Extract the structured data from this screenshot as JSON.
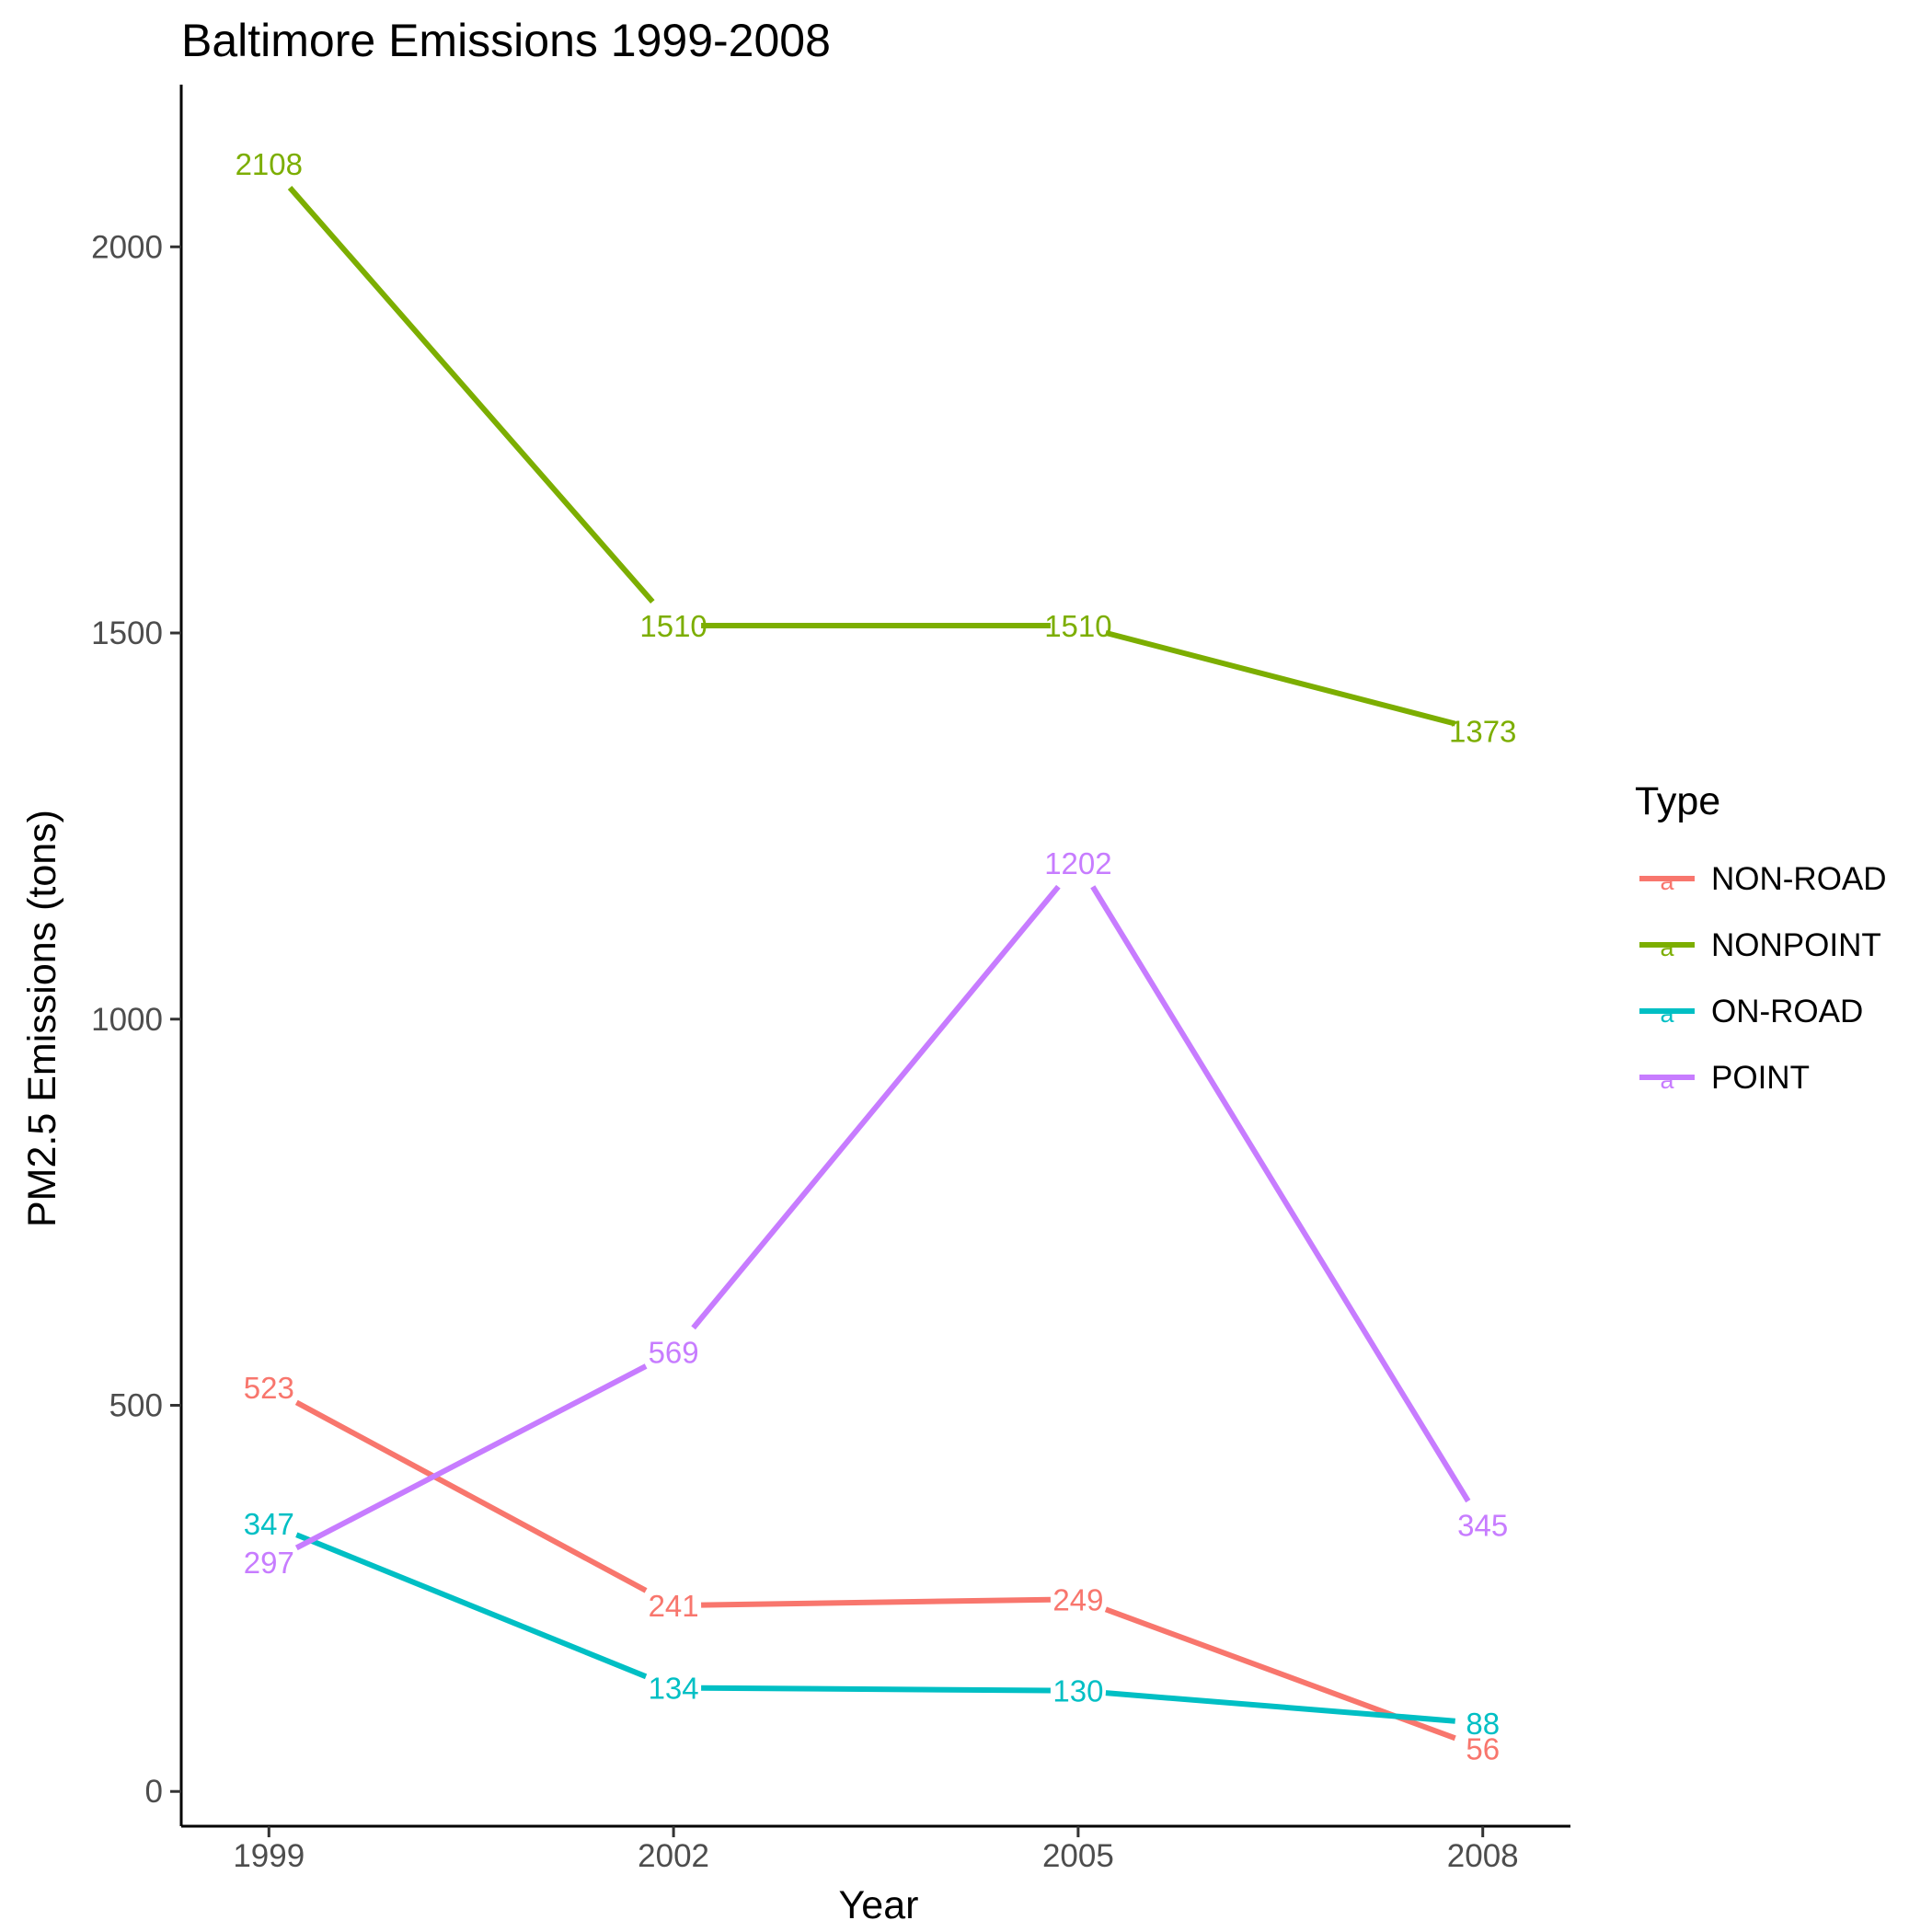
{
  "chart_data": {
    "type": "line",
    "title": "Baltimore Emissions 1999-2008",
    "xlabel": "Year",
    "ylabel": "PM2.5 Emissions (tons)",
    "x": [
      1999,
      2002,
      2005,
      2008
    ],
    "x_tick_labels": [
      "1999",
      "2002",
      "2005",
      "2008"
    ],
    "y_ticks": [
      0,
      500,
      1000,
      1500,
      2000
    ],
    "y_tick_labels": [
      "0",
      "500",
      "1000",
      "1500",
      "2000"
    ],
    "ylim": [
      -45,
      2210
    ],
    "grid": false,
    "legend": {
      "title": "Type",
      "placement": "right",
      "key_glyph": "a"
    },
    "series": [
      {
        "name": "NON-ROAD",
        "color": "#F8766D",
        "values": [
          522.94,
          240.85,
          248.93,
          55.82
        ],
        "labels": [
          "523",
          "241",
          "249",
          "56"
        ]
      },
      {
        "name": "NONPOINT",
        "color": "#7CAE00",
        "values": [
          2107.6,
          1509.5,
          1509.5,
          1373.21
        ],
        "labels": [
          "2108",
          "1510",
          "1510",
          "1373"
        ]
      },
      {
        "name": "ON-ROAD",
        "color": "#00BFC4",
        "values": [
          346.82,
          134.31,
          130.43,
          88.28
        ],
        "labels": [
          "347",
          "134",
          "130",
          "88"
        ]
      },
      {
        "name": "POINT",
        "color": "#C77CFF",
        "values": [
          296.8,
          569.26,
          1202.49,
          344.98
        ],
        "labels": [
          "297",
          "569",
          "1202",
          "345"
        ]
      }
    ]
  }
}
